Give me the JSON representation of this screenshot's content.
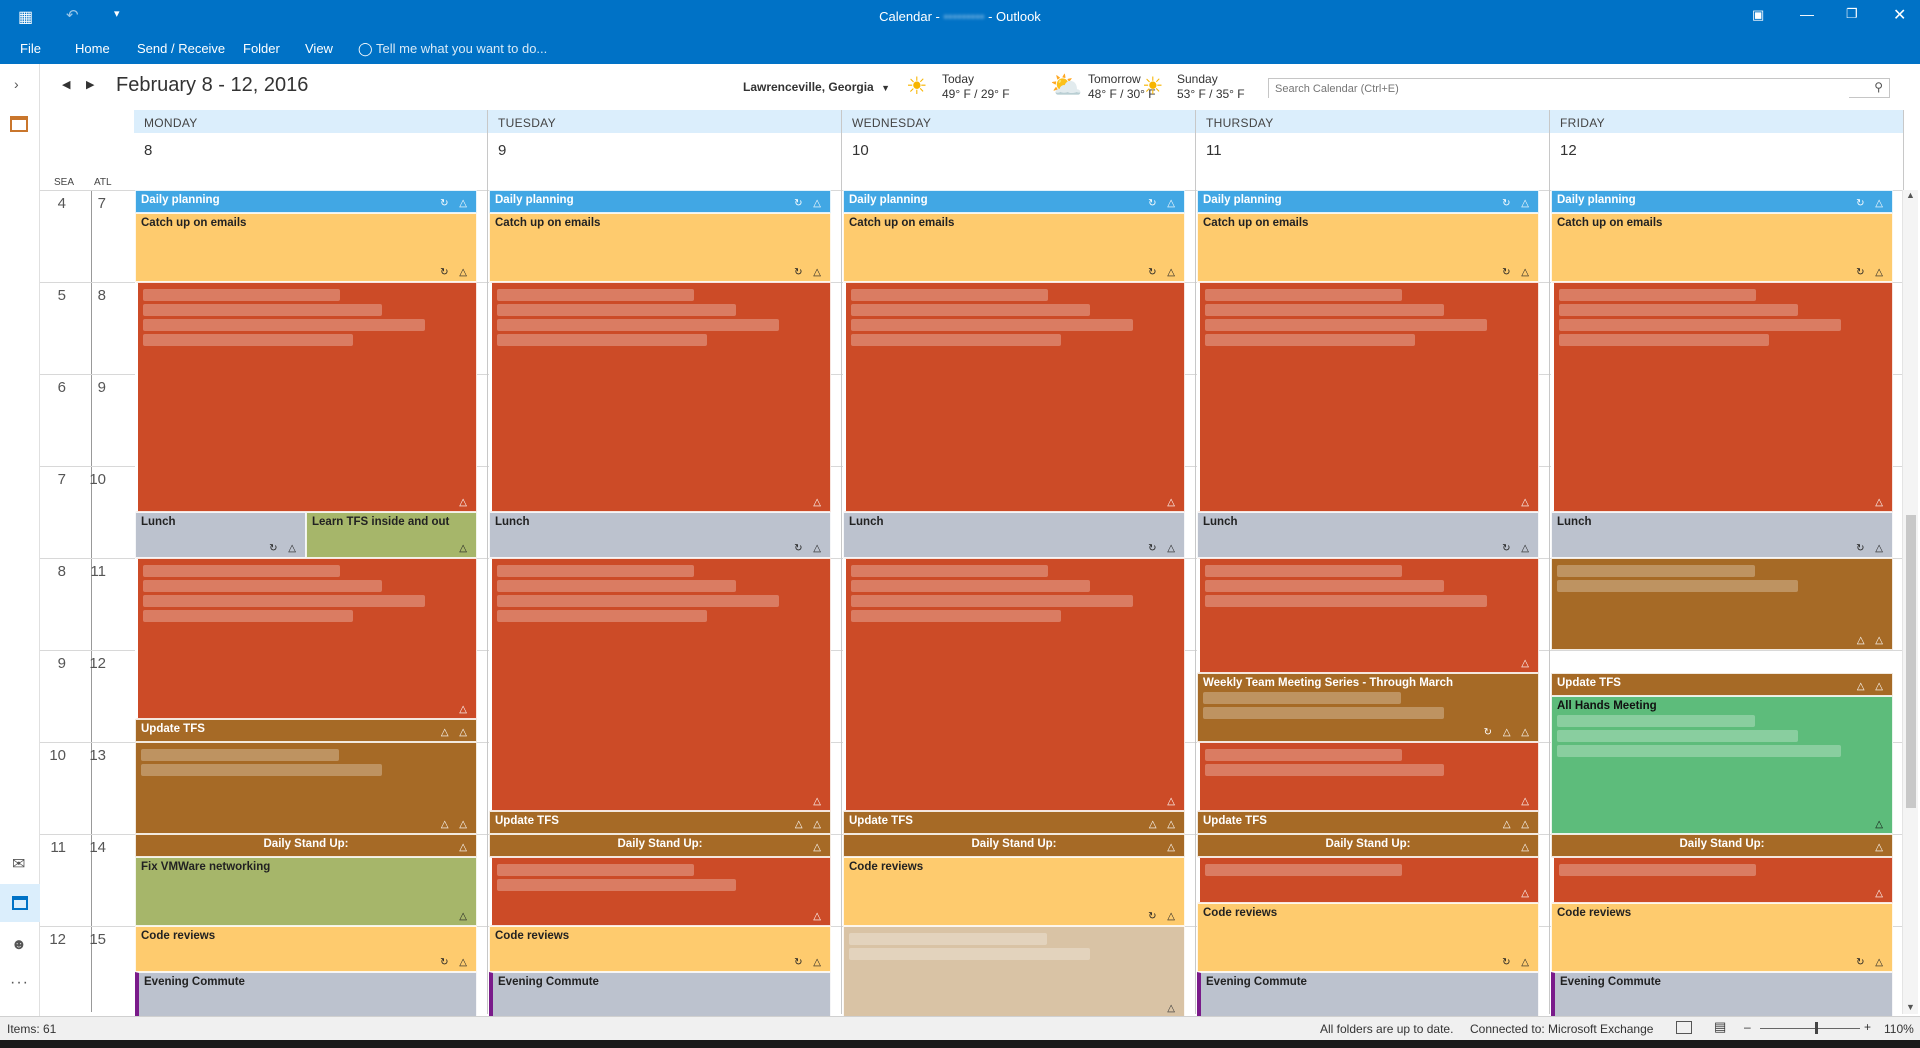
{
  "titlebar": {
    "title": "Calendar - ",
    "account": "•••••••••",
    "suffix": " - Outlook"
  },
  "ribbon": {
    "tabs": [
      "File",
      "Home",
      "Send / Receive",
      "Folder",
      "View"
    ],
    "tell_me": "Tell me what you want to do..."
  },
  "header": {
    "date_range": "February 8 - 12, 2016",
    "location": "Lawrenceville, Georgia",
    "weather": [
      {
        "day": "Today",
        "temps": "49° F / 29° F",
        "icon": "sun-icon"
      },
      {
        "day": "Tomorrow",
        "temps": "48° F / 30° F",
        "icon": "cloud-sun-icon"
      },
      {
        "day": "Sunday",
        "temps": "53° F / 35° F",
        "icon": "sun-icon"
      }
    ],
    "search_placeholder": "Search Calendar (Ctrl+E)"
  },
  "timezones": {
    "left": "SEA",
    "right": "ATL"
  },
  "hours": [
    {
      "sea": "4",
      "atl": "7"
    },
    {
      "sea": "5",
      "atl": "8"
    },
    {
      "sea": "6",
      "atl": "9"
    },
    {
      "sea": "7",
      "atl": "10"
    },
    {
      "sea": "8",
      "atl": "11"
    },
    {
      "sea": "9",
      "atl": "12"
    },
    {
      "sea": "10",
      "atl": "13"
    },
    {
      "sea": "11",
      "atl": "14"
    },
    {
      "sea": "12",
      "atl": "15"
    }
  ],
  "days": [
    {
      "name": "MONDAY",
      "num": "8",
      "events": [
        {
          "title": "Daily planning",
          "color": "blue",
          "start": 7.0,
          "end": 7.25,
          "icons": "↻ △"
        },
        {
          "title": "Catch up on emails",
          "color": "yel",
          "start": 7.25,
          "end": 8.0,
          "icons": "↻ △"
        },
        {
          "title": "",
          "color": "red",
          "start": 8.0,
          "end": 10.5,
          "icons": "△",
          "blurred": true
        },
        {
          "title": "Lunch",
          "color": "gray",
          "start": 10.5,
          "end": 11.0,
          "icons": "↻ △",
          "w": 0.5
        },
        {
          "title": "Learn TFS inside and out",
          "color": "olive",
          "start": 10.5,
          "end": 11.0,
          "icons": "△",
          "w": 0.5,
          "x": 0.5
        },
        {
          "title": "",
          "color": "red",
          "start": 11.0,
          "end": 12.75,
          "icons": "△",
          "blurred": true
        },
        {
          "title": "Update TFS",
          "color": "brn",
          "start": 12.75,
          "end": 13.0,
          "icons": "△ △"
        },
        {
          "title": "",
          "color": "brn",
          "start": 13.0,
          "end": 14.0,
          "icons": "△ △",
          "blurred": true
        },
        {
          "title": "Daily Stand Up:",
          "color": "brn",
          "start": 14.0,
          "end": 14.25,
          "icons": "△",
          "center": true
        },
        {
          "title": "Fix VMWare networking",
          "color": "olive",
          "start": 14.25,
          "end": 15.0,
          "icons": "△"
        },
        {
          "title": "Code reviews",
          "color": "yel",
          "start": 15.0,
          "end": 15.5,
          "icons": "↻ △"
        },
        {
          "title": "Evening Commute",
          "color": "gray",
          "start": 15.5,
          "end": 16.0,
          "icons": "",
          "purple": true
        }
      ]
    },
    {
      "name": "TUESDAY",
      "num": "9",
      "events": [
        {
          "title": "Daily planning",
          "color": "blue",
          "start": 7.0,
          "end": 7.25,
          "icons": "↻ △"
        },
        {
          "title": "Catch up on emails",
          "color": "yel",
          "start": 7.25,
          "end": 8.0,
          "icons": "↻ △"
        },
        {
          "title": "",
          "color": "red",
          "start": 8.0,
          "end": 10.5,
          "icons": "△",
          "blurred": true
        },
        {
          "title": "Lunch",
          "color": "gray",
          "start": 10.5,
          "end": 11.0,
          "icons": "↻ △"
        },
        {
          "title": "",
          "color": "red",
          "start": 11.0,
          "end": 13.75,
          "icons": "△",
          "blurred": true
        },
        {
          "title": "Update TFS",
          "color": "brn",
          "start": 13.75,
          "end": 14.0,
          "icons": "△ △"
        },
        {
          "title": "Daily Stand Up:",
          "color": "brn",
          "start": 14.0,
          "end": 14.25,
          "icons": "△",
          "center": true
        },
        {
          "title": "",
          "color": "red",
          "start": 14.25,
          "end": 15.0,
          "icons": "△",
          "blurred": true
        },
        {
          "title": "Code reviews",
          "color": "yel",
          "start": 15.0,
          "end": 15.5,
          "icons": "↻ △"
        },
        {
          "title": "Evening Commute",
          "color": "gray",
          "start": 15.5,
          "end": 16.0,
          "icons": "",
          "purple": true
        }
      ]
    },
    {
      "name": "WEDNESDAY",
      "num": "10",
      "events": [
        {
          "title": "Daily planning",
          "color": "blue",
          "start": 7.0,
          "end": 7.25,
          "icons": "↻ △"
        },
        {
          "title": "Catch up on emails",
          "color": "yel",
          "start": 7.25,
          "end": 8.0,
          "icons": "↻ △"
        },
        {
          "title": "",
          "color": "red",
          "start": 8.0,
          "end": 10.5,
          "icons": "△",
          "blurred": true
        },
        {
          "title": "Lunch",
          "color": "gray",
          "start": 10.5,
          "end": 11.0,
          "icons": "↻ △"
        },
        {
          "title": "",
          "color": "red",
          "start": 11.0,
          "end": 13.75,
          "icons": "△",
          "blurred": true
        },
        {
          "title": "Update TFS",
          "color": "brn",
          "start": 13.75,
          "end": 14.0,
          "icons": "△ △"
        },
        {
          "title": "Daily Stand Up:",
          "color": "brn",
          "start": 14.0,
          "end": 14.25,
          "icons": "△",
          "center": true
        },
        {
          "title": "Code reviews",
          "color": "yel",
          "start": 14.25,
          "end": 15.0,
          "icons": "↻ △"
        },
        {
          "title": "",
          "color": "tan",
          "start": 15.0,
          "end": 16.0,
          "icons": "△",
          "blurred": true
        }
      ]
    },
    {
      "name": "THURSDAY",
      "num": "11",
      "events": [
        {
          "title": "Daily planning",
          "color": "blue",
          "start": 7.0,
          "end": 7.25,
          "icons": "↻ △"
        },
        {
          "title": "Catch up on emails",
          "color": "yel",
          "start": 7.25,
          "end": 8.0,
          "icons": "↻ △"
        },
        {
          "title": "",
          "color": "red",
          "start": 8.0,
          "end": 10.5,
          "icons": "△",
          "blurred": true
        },
        {
          "title": "Lunch",
          "color": "gray",
          "start": 10.5,
          "end": 11.0,
          "icons": "↻ △"
        },
        {
          "title": "",
          "color": "red",
          "start": 11.0,
          "end": 12.25,
          "icons": "△",
          "blurred": true
        },
        {
          "title": "Weekly Team Meeting Series - Through March",
          "color": "brn",
          "start": 12.25,
          "end": 13.0,
          "icons": "↻ △ △",
          "blurred": true
        },
        {
          "title": "",
          "color": "red",
          "start": 13.0,
          "end": 13.75,
          "icons": "△",
          "blurred": true
        },
        {
          "title": "Update TFS",
          "color": "brn",
          "start": 13.75,
          "end": 14.0,
          "icons": "△ △"
        },
        {
          "title": "Daily Stand Up:",
          "color": "brn",
          "start": 14.0,
          "end": 14.25,
          "icons": "△",
          "center": true
        },
        {
          "title": "",
          "color": "red",
          "start": 14.25,
          "end": 14.75,
          "icons": "△",
          "blurred": true
        },
        {
          "title": "Code reviews",
          "color": "yel",
          "start": 14.75,
          "end": 15.5,
          "icons": "↻ △"
        },
        {
          "title": "Evening Commute",
          "color": "gray",
          "start": 15.5,
          "end": 16.0,
          "icons": "",
          "purple": true
        }
      ]
    },
    {
      "name": "FRIDAY",
      "num": "12",
      "events": [
        {
          "title": "Daily planning",
          "color": "blue",
          "start": 7.0,
          "end": 7.25,
          "icons": "↻ △"
        },
        {
          "title": "Catch up on emails",
          "color": "yel",
          "start": 7.25,
          "end": 8.0,
          "icons": "↻ △"
        },
        {
          "title": "",
          "color": "red",
          "start": 8.0,
          "end": 10.5,
          "icons": "△",
          "blurred": true
        },
        {
          "title": "Lunch",
          "color": "gray",
          "start": 10.5,
          "end": 11.0,
          "icons": "↻ △"
        },
        {
          "title": "",
          "color": "brn",
          "start": 11.0,
          "end": 12.0,
          "icons": "△ △",
          "blurred": true
        },
        {
          "title": "Update TFS",
          "color": "brn",
          "start": 12.25,
          "end": 12.5,
          "icons": "△ △"
        },
        {
          "title": "All Hands Meeting",
          "color": "grn",
          "start": 12.5,
          "end": 14.0,
          "icons": "△",
          "blurred": true
        },
        {
          "title": "Daily Stand Up:",
          "color": "brn",
          "start": 14.0,
          "end": 14.25,
          "icons": "△",
          "center": true
        },
        {
          "title": "",
          "color": "red",
          "start": 14.25,
          "end": 14.75,
          "icons": "△",
          "blurred": true
        },
        {
          "title": "Code reviews",
          "color": "yel",
          "start": 14.75,
          "end": 15.5,
          "icons": "↻ △"
        },
        {
          "title": "Evening Commute",
          "color": "gray",
          "start": 15.5,
          "end": 16.0,
          "icons": "",
          "purple": true
        }
      ]
    }
  ],
  "status": {
    "items": "Items: 61",
    "sync": "All folders are up to date.",
    "connection": "Connected to: Microsoft Exchange",
    "zoom": "110%"
  }
}
